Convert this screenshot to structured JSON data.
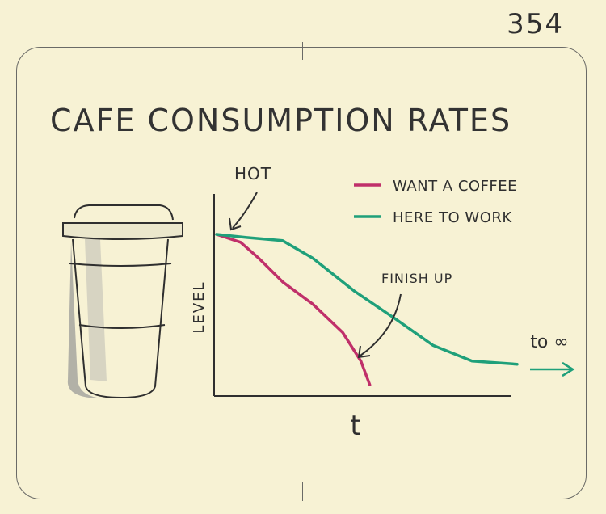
{
  "page_number": "354",
  "colors": {
    "want_a_coffee": "#c0306a",
    "here_to_work": "#1fa07a",
    "ink": "#2f2f2f",
    "paper": "#f7f2d4"
  },
  "chart_data": {
    "type": "line",
    "title": "CAFE CONSUMPTION RATES",
    "xlabel": "t",
    "ylabel": "LEVEL",
    "xlim": [
      0,
      100
    ],
    "ylim": [
      0,
      100
    ],
    "grid": false,
    "legend_position": "top-right",
    "series": [
      {
        "name": "WANT A COFFEE",
        "color_key": "want_a_coffee",
        "x": [
          0,
          8,
          14,
          22,
          32,
          42,
          48,
          51
        ],
        "y": [
          100,
          95,
          85,
          70,
          56,
          38,
          20,
          5
        ]
      },
      {
        "name": "HERE TO WORK",
        "color_key": "here_to_work",
        "x": [
          0,
          10,
          22,
          32,
          46,
          60,
          72,
          85,
          100
        ],
        "y": [
          100,
          98,
          96,
          85,
          64,
          46,
          30,
          20,
          18
        ]
      }
    ],
    "annotations": [
      {
        "text": "HOT"
      },
      {
        "text": "FINISH UP"
      },
      {
        "text": "to ∞"
      }
    ]
  }
}
